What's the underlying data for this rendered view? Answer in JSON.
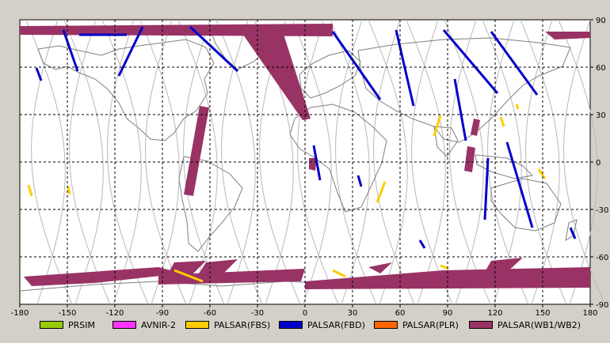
{
  "map": {
    "x_ticks": [
      "-180",
      "-150",
      "-120",
      "-90",
      "-60",
      "-30",
      "0",
      "30",
      "60",
      "90",
      "120",
      "150",
      "180"
    ],
    "y_ticks": [
      "90",
      "60",
      "30",
      "0",
      "-30",
      "-60",
      "-90"
    ],
    "xlim": [
      -180,
      180
    ],
    "ylim": [
      -90,
      90
    ],
    "grid": "dashed",
    "colors": {
      "background": "#ffffff",
      "frame": "#d4d0c8",
      "coast": "#808080",
      "orbit": "#b8b8b8",
      "grid": "#000000"
    }
  },
  "legend": [
    {
      "label": "PRSIM",
      "color": "#99cc00"
    },
    {
      "label": "AVNIR-2",
      "color": "#ff33ff"
    },
    {
      "label": "PALSAR(FBS)",
      "color": "#ffcc00"
    },
    {
      "label": "PALSAR(FBD)",
      "color": "#0000cc"
    },
    {
      "label": "PALSAR(PLR)",
      "color": "#ff6600"
    },
    {
      "label": "PALSAR(WB1/WB2)",
      "color": "#993366"
    }
  ]
}
